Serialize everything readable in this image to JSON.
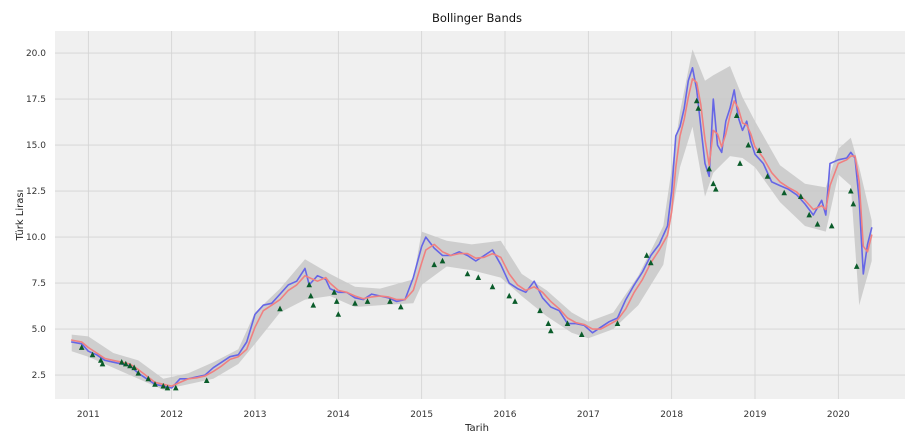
{
  "chart_data": {
    "type": "line",
    "title": "Bollinger Bands",
    "xlabel": "Tarih",
    "ylabel": "Türk Lirası",
    "xlim": [
      2010.6,
      2020.8
    ],
    "ylim": [
      1.2,
      21.2
    ],
    "x_ticks": [
      {
        "value": 2011,
        "label": "2011"
      },
      {
        "value": 2012,
        "label": "2012"
      },
      {
        "value": 2013,
        "label": "2013"
      },
      {
        "value": 2014,
        "label": "2014"
      },
      {
        "value": 2015,
        "label": "2015"
      },
      {
        "value": 2016,
        "label": "2016"
      },
      {
        "value": 2017,
        "label": "2017"
      },
      {
        "value": 2018,
        "label": "2018"
      },
      {
        "value": 2019,
        "label": "2019"
      },
      {
        "value": 2020,
        "label": "2020"
      }
    ],
    "y_ticks": [
      {
        "value": 2.5,
        "label": "2.5"
      },
      {
        "value": 5.0,
        "label": "5.0"
      },
      {
        "value": 7.5,
        "label": "7.5"
      },
      {
        "value": 10.0,
        "label": "10.0"
      },
      {
        "value": 12.5,
        "label": "12.5"
      },
      {
        "value": 15.0,
        "label": "15.0"
      },
      {
        "value": 17.5,
        "label": "17.5"
      },
      {
        "value": 20.0,
        "label": "20.0"
      }
    ],
    "grid": true,
    "colors": {
      "background": "#f0f0f0",
      "grid": "#d3d3d3",
      "price": "#6666e6",
      "sma": "#f08080",
      "band": "#c8c8c8",
      "signal": "#0a5c2a"
    },
    "series": [
      {
        "role": "price",
        "x": [
          2010.8,
          2010.92,
          2011.0,
          2011.1,
          2011.2,
          2011.3,
          2011.4,
          2011.5,
          2011.6,
          2011.7,
          2011.8,
          2011.9,
          2012.0,
          2012.1,
          2012.2,
          2012.3,
          2012.4,
          2012.5,
          2012.6,
          2012.7,
          2012.8,
          2012.9,
          2013.0,
          2013.1,
          2013.2,
          2013.3,
          2013.4,
          2013.5,
          2013.6,
          2013.65,
          2013.75,
          2013.85,
          2013.9,
          2014.0,
          2014.1,
          2014.2,
          2014.3,
          2014.4,
          2014.5,
          2014.6,
          2014.7,
          2014.8,
          2014.9,
          2015.0,
          2015.05,
          2015.15,
          2015.25,
          2015.35,
          2015.45,
          2015.55,
          2015.65,
          2015.75,
          2015.85,
          2015.95,
          2016.05,
          2016.15,
          2016.25,
          2016.35,
          2016.45,
          2016.55,
          2016.65,
          2016.75,
          2016.85,
          2016.95,
          2017.05,
          2017.15,
          2017.25,
          2017.35,
          2017.45,
          2017.55,
          2017.65,
          2017.75,
          2017.85,
          2017.95,
          2018.0,
          2018.05,
          2018.1,
          2018.15,
          2018.2,
          2018.25,
          2018.3,
          2018.35,
          2018.4,
          2018.45,
          2018.5,
          2018.55,
          2018.6,
          2018.65,
          2018.7,
          2018.75,
          2018.8,
          2018.85,
          2018.9,
          2018.95,
          2019.0,
          2019.1,
          2019.2,
          2019.3,
          2019.4,
          2019.5,
          2019.6,
          2019.7,
          2019.8,
          2019.85,
          2019.9,
          2020.0,
          2020.1,
          2020.15,
          2020.2,
          2020.25,
          2020.3,
          2020.35,
          2020.4
        ],
        "y": [
          4.3,
          4.2,
          3.8,
          3.6,
          3.3,
          3.2,
          3.1,
          3.0,
          2.6,
          2.3,
          2.0,
          1.9,
          1.8,
          2.3,
          2.3,
          2.4,
          2.5,
          2.9,
          3.2,
          3.5,
          3.6,
          4.3,
          5.8,
          6.3,
          6.4,
          6.9,
          7.4,
          7.6,
          8.3,
          7.4,
          7.9,
          7.7,
          7.2,
          7.0,
          7.0,
          6.7,
          6.6,
          6.9,
          6.8,
          6.7,
          6.5,
          6.6,
          7.8,
          9.5,
          10.0,
          9.4,
          9.0,
          9.0,
          9.2,
          9.0,
          8.7,
          9.0,
          9.3,
          8.5,
          7.5,
          7.2,
          7.0,
          7.6,
          6.7,
          6.2,
          6.0,
          5.3,
          5.3,
          5.2,
          4.8,
          5.1,
          5.4,
          5.6,
          6.6,
          7.4,
          8.1,
          9.0,
          9.6,
          10.6,
          12.5,
          15.5,
          16.0,
          17.0,
          18.5,
          19.2,
          18.0,
          16.0,
          14.0,
          13.3,
          17.5,
          15.0,
          14.6,
          16.3,
          17.0,
          18.0,
          16.5,
          15.8,
          16.3,
          15.2,
          14.5,
          14.0,
          13.0,
          12.8,
          12.6,
          12.3,
          11.8,
          11.2,
          12.0,
          11.2,
          14.0,
          14.2,
          14.3,
          14.6,
          14.3,
          12.0,
          8.0,
          9.6,
          10.5
        ]
      },
      {
        "role": "sma",
        "x": [
          2010.8,
          2010.92,
          2011.0,
          2011.1,
          2011.2,
          2011.3,
          2011.4,
          2011.5,
          2011.6,
          2011.7,
          2011.8,
          2011.9,
          2012.0,
          2012.1,
          2012.2,
          2012.3,
          2012.4,
          2012.5,
          2012.6,
          2012.7,
          2012.8,
          2012.9,
          2013.0,
          2013.1,
          2013.2,
          2013.3,
          2013.4,
          2013.5,
          2013.6,
          2013.65,
          2013.75,
          2013.85,
          2013.9,
          2014.0,
          2014.1,
          2014.2,
          2014.3,
          2014.4,
          2014.5,
          2014.6,
          2014.7,
          2014.8,
          2014.9,
          2015.0,
          2015.05,
          2015.15,
          2015.25,
          2015.35,
          2015.45,
          2015.55,
          2015.65,
          2015.75,
          2015.85,
          2015.95,
          2016.05,
          2016.15,
          2016.25,
          2016.35,
          2016.45,
          2016.55,
          2016.65,
          2016.75,
          2016.85,
          2016.95,
          2017.05,
          2017.15,
          2017.25,
          2017.35,
          2017.45,
          2017.55,
          2017.65,
          2017.75,
          2017.85,
          2017.95,
          2018.0,
          2018.05,
          2018.1,
          2018.15,
          2018.2,
          2018.25,
          2018.3,
          2018.35,
          2018.4,
          2018.45,
          2018.5,
          2018.55,
          2018.6,
          2018.65,
          2018.7,
          2018.75,
          2018.8,
          2018.85,
          2018.9,
          2018.95,
          2019.0,
          2019.1,
          2019.2,
          2019.3,
          2019.4,
          2019.5,
          2019.6,
          2019.7,
          2019.8,
          2019.85,
          2019.9,
          2020.0,
          2020.1,
          2020.15,
          2020.2,
          2020.25,
          2020.3,
          2020.35,
          2020.4
        ],
        "y": [
          4.4,
          4.3,
          4.0,
          3.7,
          3.4,
          3.3,
          3.2,
          3.1,
          2.8,
          2.45,
          2.1,
          2.0,
          1.9,
          2.1,
          2.3,
          2.35,
          2.45,
          2.7,
          3.0,
          3.35,
          3.5,
          3.9,
          5.1,
          6.0,
          6.3,
          6.6,
          7.1,
          7.4,
          7.9,
          7.8,
          7.6,
          7.8,
          7.5,
          7.1,
          7.0,
          6.8,
          6.65,
          6.75,
          6.8,
          6.75,
          6.6,
          6.6,
          7.1,
          8.6,
          9.3,
          9.6,
          9.2,
          9.0,
          9.1,
          9.1,
          8.85,
          8.9,
          9.1,
          8.9,
          8.0,
          7.4,
          7.1,
          7.3,
          7.0,
          6.5,
          6.1,
          5.6,
          5.35,
          5.25,
          5.0,
          5.0,
          5.25,
          5.5,
          6.1,
          7.0,
          7.7,
          8.6,
          9.3,
          10.1,
          11.4,
          13.8,
          15.5,
          16.4,
          17.6,
          18.6,
          18.4,
          17.2,
          15.3,
          13.9,
          15.8,
          15.6,
          14.9,
          15.6,
          16.6,
          17.4,
          17.0,
          16.2,
          16.1,
          15.6,
          14.9,
          14.3,
          13.5,
          13.0,
          12.7,
          12.45,
          12.0,
          11.5,
          11.7,
          11.5,
          12.8,
          14.0,
          14.2,
          14.4,
          14.4,
          13.0,
          9.5,
          9.2,
          10.1
        ]
      },
      {
        "role": "upper-band",
        "x": [
          2010.8,
          2011.0,
          2011.3,
          2011.6,
          2011.9,
          2012.2,
          2012.5,
          2012.8,
          2013.0,
          2013.3,
          2013.6,
          2013.9,
          2014.2,
          2014.5,
          2014.9,
          2015.0,
          2015.3,
          2015.6,
          2015.95,
          2016.2,
          2016.5,
          2016.8,
          2017.0,
          2017.3,
          2017.6,
          2017.9,
          2018.1,
          2018.25,
          2018.4,
          2018.5,
          2018.7,
          2018.85,
          2019.0,
          2019.3,
          2019.6,
          2019.85,
          2020.0,
          2020.15,
          2020.25,
          2020.4
        ],
        "y": [
          4.7,
          4.6,
          3.7,
          3.3,
          2.3,
          2.6,
          3.2,
          3.9,
          5.9,
          7.2,
          8.8,
          8.0,
          7.3,
          7.2,
          7.7,
          10.3,
          9.8,
          9.6,
          9.8,
          8.0,
          7.1,
          5.9,
          5.4,
          5.9,
          7.9,
          10.6,
          16.8,
          20.2,
          18.5,
          18.8,
          19.3,
          17.6,
          16.3,
          13.9,
          12.9,
          12.7,
          14.8,
          15.4,
          13.8,
          10.9
        ]
      },
      {
        "role": "lower-band",
        "x": [
          2010.8,
          2011.0,
          2011.3,
          2011.6,
          2011.9,
          2012.2,
          2012.5,
          2012.8,
          2013.0,
          2013.3,
          2013.6,
          2013.9,
          2014.2,
          2014.5,
          2014.9,
          2015.0,
          2015.3,
          2015.6,
          2015.95,
          2016.2,
          2016.5,
          2016.8,
          2017.0,
          2017.3,
          2017.6,
          2017.9,
          2018.1,
          2018.25,
          2018.4,
          2018.5,
          2018.7,
          2018.85,
          2019.0,
          2019.3,
          2019.6,
          2019.85,
          2020.0,
          2020.15,
          2020.25,
          2020.4
        ],
        "y": [
          3.8,
          3.5,
          2.9,
          2.3,
          1.7,
          2.0,
          2.3,
          3.1,
          4.2,
          5.9,
          6.6,
          6.8,
          6.2,
          6.3,
          6.4,
          7.4,
          8.4,
          8.2,
          7.8,
          6.8,
          5.7,
          4.8,
          4.5,
          5.0,
          6.3,
          8.5,
          13.8,
          16.0,
          12.2,
          13.5,
          14.4,
          14.3,
          13.8,
          11.9,
          10.6,
          10.3,
          13.4,
          12.8,
          6.3,
          8.7
        ]
      },
      {
        "role": "signals",
        "x": [
          2010.92,
          2011.05,
          2011.15,
          2011.17,
          2011.4,
          2011.45,
          2011.5,
          2011.55,
          2011.6,
          2011.72,
          2011.8,
          2011.9,
          2011.95,
          2012.05,
          2012.42,
          2013.3,
          2013.65,
          2013.67,
          2013.7,
          2013.95,
          2013.98,
          2014.0,
          2014.2,
          2014.35,
          2014.62,
          2014.75,
          2015.15,
          2015.25,
          2015.55,
          2015.68,
          2015.85,
          2016.05,
          2016.12,
          2016.42,
          2016.52,
          2016.55,
          2016.75,
          2016.92,
          2017.35,
          2017.7,
          2017.75,
          2018.3,
          2018.32,
          2018.45,
          2018.5,
          2018.53,
          2018.78,
          2018.82,
          2018.92,
          2019.05,
          2019.15,
          2019.35,
          2019.55,
          2019.65,
          2019.75,
          2019.92,
          2020.15,
          2020.18,
          2020.22
        ],
        "y": [
          4.0,
          3.6,
          3.3,
          3.1,
          3.2,
          3.1,
          3.0,
          2.9,
          2.6,
          2.3,
          2.0,
          1.9,
          1.8,
          1.8,
          2.2,
          6.1,
          7.4,
          6.8,
          6.3,
          7.0,
          6.5,
          5.8,
          6.4,
          6.5,
          6.5,
          6.2,
          8.5,
          8.7,
          8.0,
          7.8,
          7.3,
          6.8,
          6.5,
          6.0,
          5.3,
          4.9,
          5.3,
          4.7,
          5.3,
          9.0,
          8.6,
          17.4,
          17.0,
          13.7,
          12.9,
          12.6,
          16.6,
          14.0,
          15.0,
          14.7,
          13.3,
          12.4,
          12.2,
          11.2,
          10.7,
          10.6,
          12.5,
          11.8,
          8.4
        ]
      }
    ]
  }
}
